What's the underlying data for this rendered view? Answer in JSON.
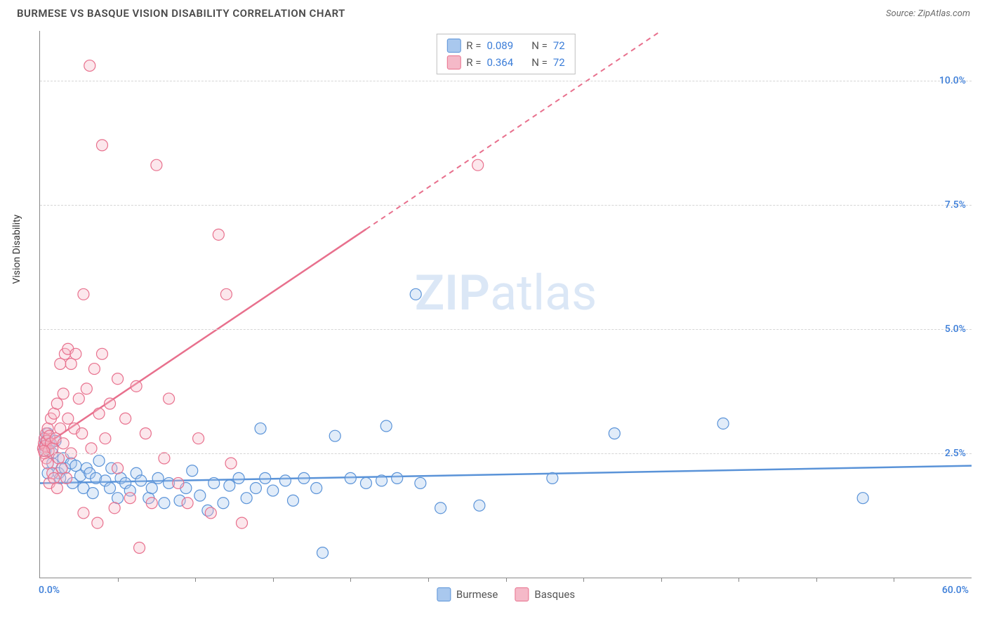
{
  "header": {
    "title": "BURMESE VS BASQUE VISION DISABILITY CORRELATION CHART",
    "title_color": "#4a4a4a",
    "source_prefix": "Source: ",
    "source_name": "ZipAtlas.com",
    "source_color": "#6b6b6b"
  },
  "chart": {
    "type": "scatter",
    "ylabel": "Vision Disability",
    "xlim": [
      0,
      60
    ],
    "ylim": [
      0,
      11
    ],
    "x_min_label": "0.0%",
    "x_max_label": "60.0%",
    "x_label_color": "#3b7dd8",
    "y_gridlines": [
      2.5,
      5.0,
      7.5,
      10.0
    ],
    "y_tick_labels": [
      "2.5%",
      "5.0%",
      "7.5%",
      "10.0%"
    ],
    "y_tick_color": "#3b7dd8",
    "grid_color": "#d5d5d5",
    "x_minor_ticks": [
      5,
      10,
      15,
      20,
      25,
      30,
      35,
      40,
      45,
      50,
      55
    ],
    "axis_color": "#888888",
    "background": "#ffffff",
    "marker_radius": 8,
    "marker_stroke_width": 1.2,
    "marker_fill_opacity": 0.35,
    "series": [
      {
        "id": "burmese",
        "label": "Burmese",
        "color_stroke": "#5a93d8",
        "color_fill": "#a9c8ee",
        "r": "0.089",
        "n": "72",
        "trend": {
          "x1": 0,
          "y1": 1.9,
          "x2": 60,
          "y2": 2.25,
          "dash": false
        },
        "points": [
          [
            0.3,
            2.8
          ],
          [
            0.4,
            2.75
          ],
          [
            0.5,
            2.9
          ],
          [
            0.5,
            2.1
          ],
          [
            0.6,
            2.7
          ],
          [
            0.8,
            2.5
          ],
          [
            0.8,
            2.3
          ],
          [
            1.0,
            2.75
          ],
          [
            1.2,
            2.1
          ],
          [
            1.3,
            2.0
          ],
          [
            1.5,
            2.4
          ],
          [
            1.6,
            2.2
          ],
          [
            2.0,
            2.3
          ],
          [
            2.1,
            1.9
          ],
          [
            2.3,
            2.25
          ],
          [
            2.6,
            2.05
          ],
          [
            2.8,
            1.8
          ],
          [
            3.0,
            2.2
          ],
          [
            3.2,
            2.1
          ],
          [
            3.4,
            1.7
          ],
          [
            3.6,
            2.0
          ],
          [
            3.8,
            2.35
          ],
          [
            4.2,
            1.95
          ],
          [
            4.5,
            1.8
          ],
          [
            4.6,
            2.2
          ],
          [
            5.0,
            1.6
          ],
          [
            5.2,
            2.0
          ],
          [
            5.5,
            1.9
          ],
          [
            5.8,
            1.75
          ],
          [
            6.2,
            2.1
          ],
          [
            6.5,
            1.95
          ],
          [
            7.0,
            1.6
          ],
          [
            7.2,
            1.8
          ],
          [
            7.6,
            2.0
          ],
          [
            8.0,
            1.5
          ],
          [
            8.3,
            1.9
          ],
          [
            9.0,
            1.55
          ],
          [
            9.4,
            1.8
          ],
          [
            9.8,
            2.15
          ],
          [
            10.3,
            1.65
          ],
          [
            10.8,
            1.35
          ],
          [
            11.2,
            1.9
          ],
          [
            11.8,
            1.5
          ],
          [
            12.2,
            1.85
          ],
          [
            12.8,
            2.0
          ],
          [
            13.3,
            1.6
          ],
          [
            13.9,
            1.8
          ],
          [
            14.2,
            3.0
          ],
          [
            14.5,
            2.0
          ],
          [
            15.0,
            1.75
          ],
          [
            15.8,
            1.95
          ],
          [
            16.3,
            1.55
          ],
          [
            17.0,
            2.0
          ],
          [
            17.8,
            1.8
          ],
          [
            18.2,
            0.5
          ],
          [
            19.0,
            2.85
          ],
          [
            20.0,
            2.0
          ],
          [
            21.0,
            1.9
          ],
          [
            22.0,
            1.95
          ],
          [
            22.3,
            3.05
          ],
          [
            23.0,
            2.0
          ],
          [
            24.2,
            5.7
          ],
          [
            24.5,
            1.9
          ],
          [
            25.8,
            1.4
          ],
          [
            28.3,
            1.45
          ],
          [
            33.0,
            2.0
          ],
          [
            37.0,
            2.9
          ],
          [
            44.0,
            3.1
          ],
          [
            53.0,
            1.6
          ],
          [
            0.3,
            2.6
          ],
          [
            0.3,
            2.65
          ],
          [
            0.35,
            2.55
          ]
        ]
      },
      {
        "id": "basques",
        "label": "Basques",
        "color_stroke": "#e8708d",
        "color_fill": "#f5b9c8",
        "r": "0.364",
        "n": "72",
        "trend": {
          "x1": 0,
          "y1": 2.6,
          "x2": 40,
          "y2": 11.0,
          "dash_from_x": 21
        },
        "points": [
          [
            0.2,
            2.6
          ],
          [
            0.25,
            2.7
          ],
          [
            0.3,
            2.5
          ],
          [
            0.3,
            2.8
          ],
          [
            0.35,
            2.65
          ],
          [
            0.4,
            2.9
          ],
          [
            0.4,
            2.4
          ],
          [
            0.45,
            2.75
          ],
          [
            0.5,
            3.0
          ],
          [
            0.5,
            2.3
          ],
          [
            0.55,
            2.55
          ],
          [
            0.6,
            2.85
          ],
          [
            0.6,
            1.9
          ],
          [
            0.7,
            2.7
          ],
          [
            0.7,
            3.2
          ],
          [
            0.8,
            2.1
          ],
          [
            0.8,
            2.6
          ],
          [
            0.9,
            3.3
          ],
          [
            0.9,
            2.0
          ],
          [
            1.0,
            2.8
          ],
          [
            1.1,
            3.5
          ],
          [
            1.1,
            1.8
          ],
          [
            1.2,
            2.4
          ],
          [
            1.3,
            3.0
          ],
          [
            1.3,
            4.3
          ],
          [
            1.4,
            2.2
          ],
          [
            1.5,
            3.7
          ],
          [
            1.5,
            2.7
          ],
          [
            1.6,
            4.5
          ],
          [
            1.7,
            2.0
          ],
          [
            1.8,
            3.2
          ],
          [
            1.8,
            4.6
          ],
          [
            2.0,
            2.5
          ],
          [
            2.0,
            4.3
          ],
          [
            2.2,
            3.0
          ],
          [
            2.3,
            4.5
          ],
          [
            2.5,
            3.6
          ],
          [
            2.7,
            2.9
          ],
          [
            2.8,
            1.3
          ],
          [
            2.8,
            5.7
          ],
          [
            3.0,
            3.8
          ],
          [
            3.2,
            10.3
          ],
          [
            3.3,
            2.6
          ],
          [
            3.5,
            4.2
          ],
          [
            3.7,
            1.1
          ],
          [
            3.8,
            3.3
          ],
          [
            4.0,
            4.5
          ],
          [
            4.0,
            8.7
          ],
          [
            4.2,
            2.8
          ],
          [
            4.5,
            3.5
          ],
          [
            4.8,
            1.4
          ],
          [
            5.0,
            2.2
          ],
          [
            5.0,
            4.0
          ],
          [
            5.5,
            3.2
          ],
          [
            5.8,
            1.6
          ],
          [
            6.2,
            3.85
          ],
          [
            6.4,
            0.6
          ],
          [
            6.8,
            2.9
          ],
          [
            7.2,
            1.5
          ],
          [
            7.5,
            8.3
          ],
          [
            8.0,
            2.4
          ],
          [
            8.3,
            3.6
          ],
          [
            8.9,
            1.9
          ],
          [
            9.5,
            1.5
          ],
          [
            10.2,
            2.8
          ],
          [
            11.0,
            1.3
          ],
          [
            11.5,
            6.9
          ],
          [
            12.0,
            5.7
          ],
          [
            12.3,
            2.3
          ],
          [
            13.0,
            1.1
          ],
          [
            28.2,
            8.3
          ],
          [
            0.25,
            2.55
          ]
        ]
      }
    ],
    "legend_stats": {
      "r_label": "R =",
      "n_label": "N =",
      "value_color": "#3b7dd8",
      "text_color": "#555555"
    },
    "watermark": {
      "text_bold": "ZIP",
      "text_light": "atlas",
      "color": "#dbe7f6"
    }
  }
}
